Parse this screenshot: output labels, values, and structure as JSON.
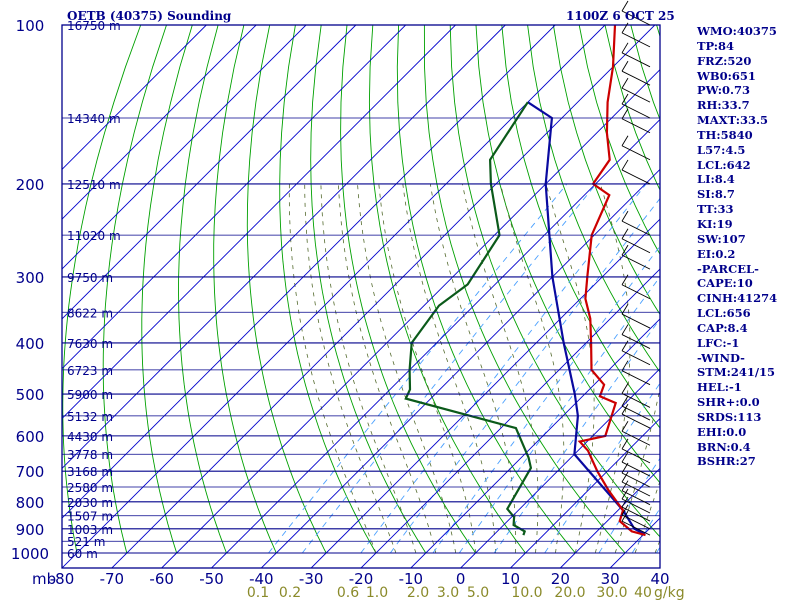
{
  "chart_data": {
    "type": "skew-t",
    "title": "OETB (40375) Sounding",
    "datetime": "1100Z  6 OCT 25",
    "x_unit_label": "mb",
    "y_unit_label": "g/kg",
    "xlim": [
      -80,
      40
    ],
    "pressure_levels": [
      100,
      200,
      300,
      400,
      500,
      600,
      700,
      800,
      900,
      1000
    ],
    "height_labels": [
      {
        "p": 100,
        "label": "16750 m"
      },
      {
        "p": 150,
        "label": "14340 m"
      },
      {
        "p": 200,
        "label": "12510 m"
      },
      {
        "p": 250,
        "label": "11020 m"
      },
      {
        "p": 300,
        "label": "9750 m"
      },
      {
        "p": 350,
        "label": "8622 m"
      },
      {
        "p": 400,
        "label": "7630 m"
      },
      {
        "p": 450,
        "label": "6723 m"
      },
      {
        "p": 500,
        "label": "5900 m"
      },
      {
        "p": 550,
        "label": "5132 m"
      },
      {
        "p": 600,
        "label": "4430 m"
      },
      {
        "p": 650,
        "label": "3778 m"
      },
      {
        "p": 700,
        "label": "3168 m"
      },
      {
        "p": 750,
        "label": "2580 m"
      },
      {
        "p": 800,
        "label": "2030 m"
      },
      {
        "p": 850,
        "label": "1507 m"
      },
      {
        "p": 900,
        "label": "1003 m"
      },
      {
        "p": 950,
        "label": "521 m"
      },
      {
        "p": 1000,
        "label": "60 m"
      }
    ],
    "temperature_ticks": [
      -80,
      -70,
      -60,
      -50,
      -40,
      -30,
      -20,
      -10,
      0,
      10,
      20,
      30,
      40
    ],
    "mixing_ratio_ticks": [
      0.1,
      0.2,
      0.6,
      1.0,
      2.0,
      3.0,
      5.0,
      10.0,
      20.0,
      30.0,
      40
    ],
    "temperature_profile": [
      {
        "p": 925,
        "t": 30.5
      },
      {
        "p": 910,
        "t": 27
      },
      {
        "p": 870,
        "t": 22.5
      },
      {
        "p": 830,
        "t": 21
      },
      {
        "p": 760,
        "t": 14
      },
      {
        "p": 700,
        "t": 8
      },
      {
        "p": 640,
        "t": 2
      },
      {
        "p": 615,
        "t": -1.5
      },
      {
        "p": 600,
        "t": 2.5
      },
      {
        "p": 520,
        "t": -2
      },
      {
        "p": 505,
        "t": -6.5
      },
      {
        "p": 480,
        "t": -8
      },
      {
        "p": 450,
        "t": -13.5
      },
      {
        "p": 400,
        "t": -19
      },
      {
        "p": 360,
        "t": -24
      },
      {
        "p": 330,
        "t": -29
      },
      {
        "p": 300,
        "t": -33
      },
      {
        "p": 250,
        "t": -40.5
      },
      {
        "p": 210,
        "t": -45
      },
      {
        "p": 200,
        "t": -50.5
      },
      {
        "p": 180,
        "t": -52
      },
      {
        "p": 160,
        "t": -58
      },
      {
        "p": 140,
        "t": -64
      },
      {
        "p": 120,
        "t": -70
      },
      {
        "p": 100,
        "t": -78
      }
    ],
    "dewpoint_profile": [
      {
        "p": 925,
        "t": 6
      },
      {
        "p": 910,
        "t": 5.5
      },
      {
        "p": 885,
        "t": 2
      },
      {
        "p": 855,
        "t": 0.5
      },
      {
        "p": 825,
        "t": -2.5
      },
      {
        "p": 690,
        "t": -6
      },
      {
        "p": 660,
        "t": -8.5
      },
      {
        "p": 580,
        "t": -17
      },
      {
        "p": 510,
        "t": -45
      },
      {
        "p": 490,
        "t": -46
      },
      {
        "p": 450,
        "t": -50
      },
      {
        "p": 400,
        "t": -55
      },
      {
        "p": 340,
        "t": -57
      },
      {
        "p": 310,
        "t": -55.5
      },
      {
        "p": 250,
        "t": -59
      },
      {
        "p": 200,
        "t": -71
      },
      {
        "p": 180,
        "t": -76
      },
      {
        "p": 140,
        "t": -80
      }
    ],
    "parcel_profile": [
      {
        "p": 920,
        "t": 30
      },
      {
        "p": 900,
        "t": 27
      },
      {
        "p": 830,
        "t": 21
      },
      {
        "p": 650,
        "t": 0
      },
      {
        "p": 550,
        "t": -7
      },
      {
        "p": 500,
        "t": -12
      },
      {
        "p": 400,
        "t": -24.5
      },
      {
        "p": 300,
        "t": -40
      },
      {
        "p": 200,
        "t": -60
      },
      {
        "p": 150,
        "t": -72
      },
      {
        "p": 140,
        "t": -80
      }
    ],
    "wind_barbs": [
      {
        "p": 925
      },
      {
        "p": 900
      },
      {
        "p": 870
      },
      {
        "p": 840
      },
      {
        "p": 810
      },
      {
        "p": 780
      },
      {
        "p": 750
      },
      {
        "p": 715
      },
      {
        "p": 675
      },
      {
        "p": 625
      },
      {
        "p": 580
      },
      {
        "p": 560
      },
      {
        "p": 530
      },
      {
        "p": 480
      },
      {
        "p": 440
      },
      {
        "p": 410
      },
      {
        "p": 375
      },
      {
        "p": 330
      },
      {
        "p": 290
      },
      {
        "p": 270
      },
      {
        "p": 250
      },
      {
        "p": 200
      },
      {
        "p": 180
      },
      {
        "p": 160
      },
      {
        "p": 150
      },
      {
        "p": 140
      },
      {
        "p": 130
      },
      {
        "p": 120
      },
      {
        "p": 110
      },
      {
        "p": 100
      }
    ],
    "colors": {
      "frame": "#00008b",
      "isotherm": "#0000cc",
      "dry_adiabat": "#00a000",
      "moist_adiabat": "#556b2f",
      "mixing_ratio": "#4aa0ff",
      "temperature": "#cc0000",
      "dewpoint": "#0b5a1a",
      "parcel": "#0a0aa0",
      "mixing_label": "#8a8a2a",
      "wind": "#000000"
    }
  },
  "indices": [
    "WMO:40375",
    "TP:84",
    "FRZ:520",
    "WB0:651",
    "PW:0.73",
    "RH:33.7",
    "MAXT:33.5",
    "TH:5840",
    "L57:4.5",
    "LCL:642",
    "LI:8.4",
    "SI:8.7",
    "TT:33",
    "KI:19",
    "SW:107",
    "EI:0.2",
    "-PARCEL-",
    "CAPE:10",
    "CINH:41274",
    "LCL:656",
    "CAP:8.4",
    "LFC:-1",
    "-WIND-",
    "STM:241/15",
    "HEL:-1",
    "SHR+:0.0",
    "SRDS:113",
    "EHI:0.0",
    "BRN:0.4",
    "BSHR:27"
  ]
}
